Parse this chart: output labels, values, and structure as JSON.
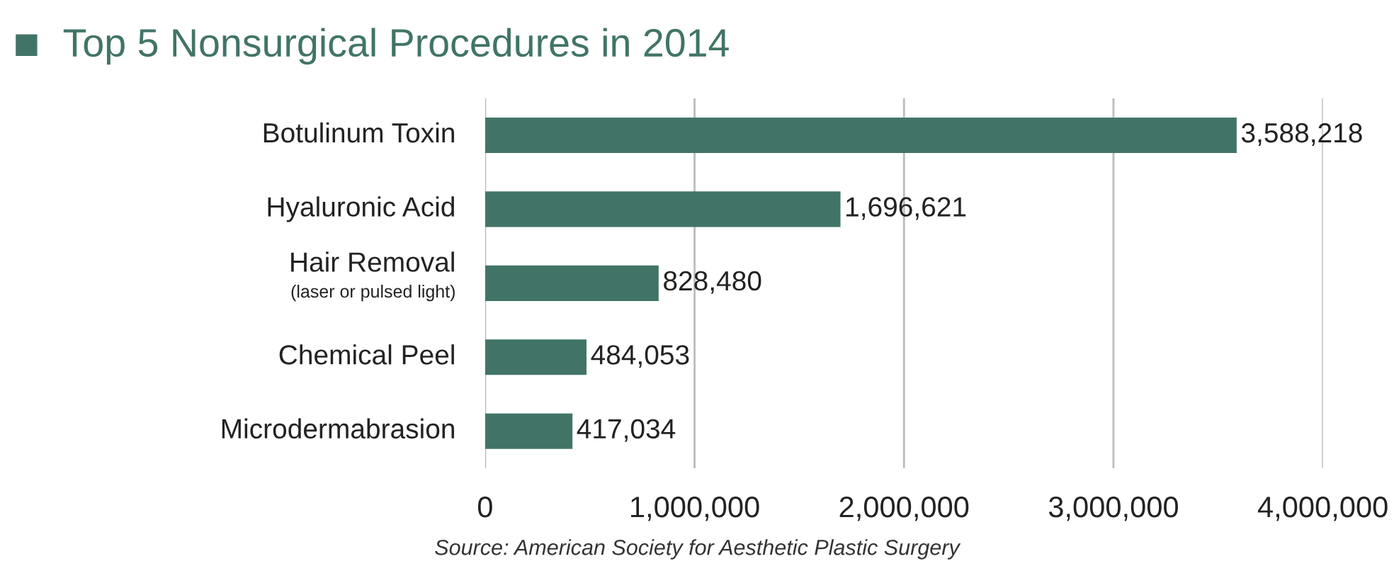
{
  "chart_data": {
    "type": "bar",
    "orientation": "horizontal",
    "title": "Top 5 Nonsurgical Procedures in 2014",
    "categories": [
      "Botulinum Toxin",
      "Hyaluronic Acid",
      "Hair Removal\n(laser or pulsed light)",
      "Chemical Peel",
      "Microdermabrasion"
    ],
    "values": [
      3588218,
      1696621,
      828480,
      484053,
      417034
    ],
    "color": "#417467",
    "xlim": [
      0,
      4000000
    ],
    "xticks": [
      {
        "value": 0,
        "label": "0"
      },
      {
        "value": 1000000,
        "label": "1,000,000"
      },
      {
        "value": 2000000,
        "label": "2,000,000"
      },
      {
        "value": 3000000,
        "label": "3,000,000"
      },
      {
        "value": 4000000,
        "label": "4,000,000"
      }
    ],
    "grid": "x",
    "value_labels": [
      "3,588,218",
      "1,696,621",
      "828,480",
      "484,053",
      "417,034"
    ],
    "annotations": [
      "Source: American Society for Aesthetic Plastic Surgery"
    ]
  }
}
